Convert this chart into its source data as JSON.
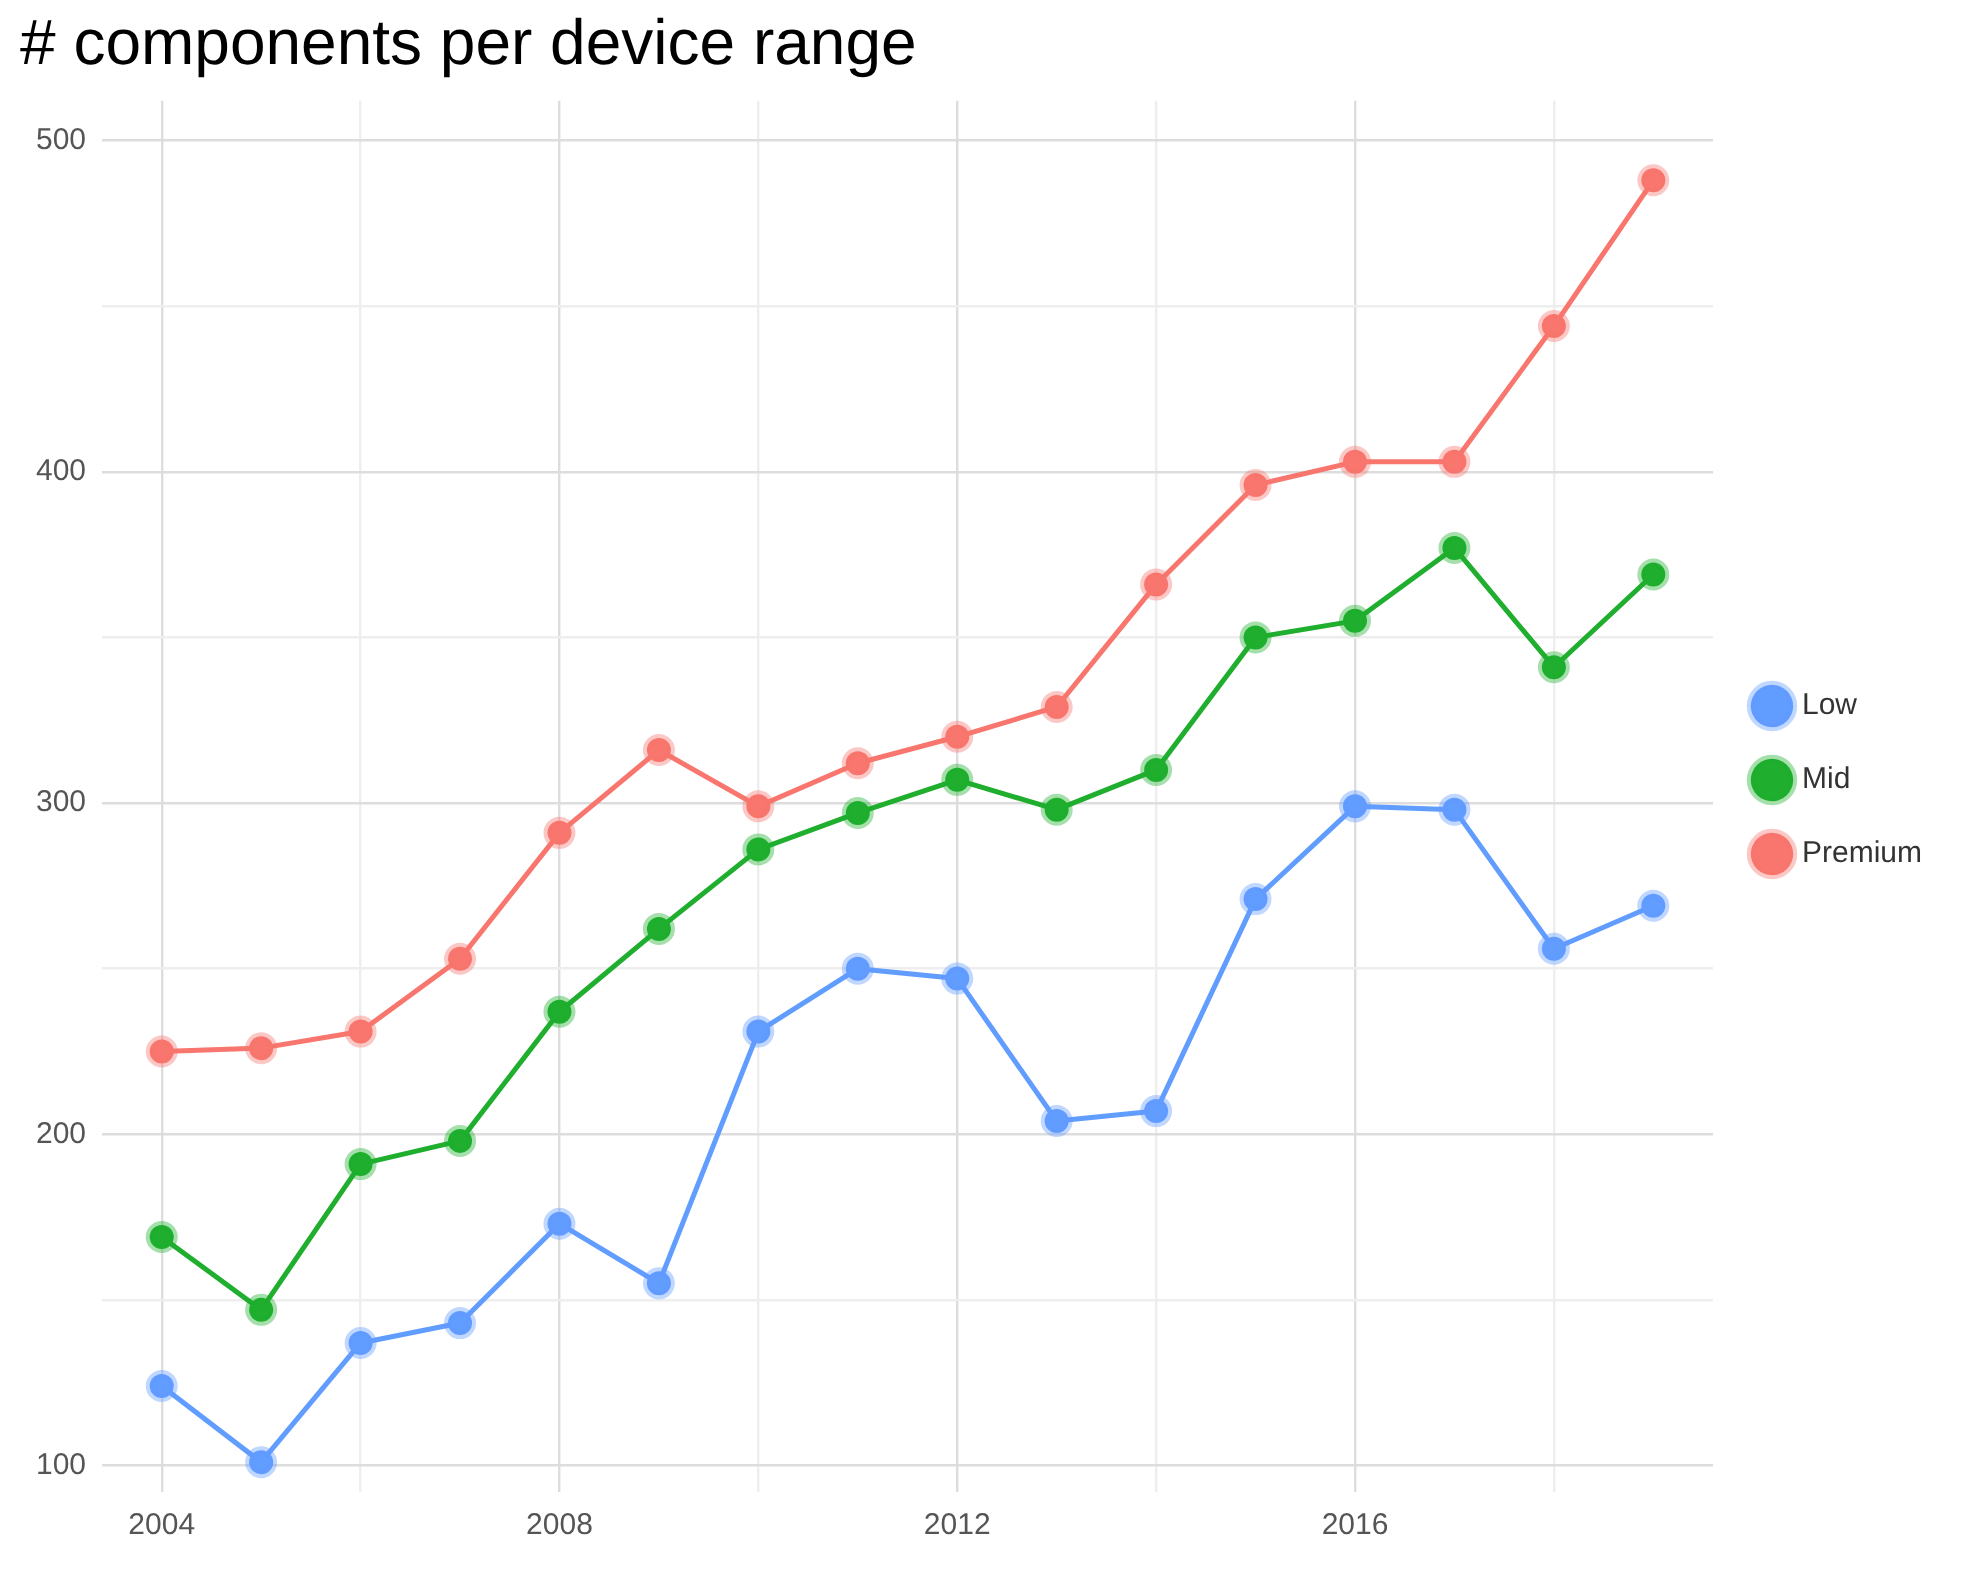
{
  "chart_data": {
    "type": "line",
    "title": "# components per device range",
    "x": [
      2004,
      2005,
      2006,
      2007,
      2008,
      2009,
      2010,
      2011,
      2012,
      2013,
      2014,
      2015,
      2016,
      2017,
      2018,
      2019
    ],
    "series": [
      {
        "name": "Low",
        "color": "#619cff",
        "values": [
          124,
          101,
          137,
          143,
          173,
          155,
          231,
          250,
          247,
          204,
          207,
          271,
          299,
          298,
          256,
          269
        ]
      },
      {
        "name": "Mid",
        "color": "#1fae2e",
        "values": [
          169,
          147,
          191,
          198,
          237,
          262,
          286,
          297,
          307,
          298,
          310,
          350,
          355,
          377,
          341,
          369
        ]
      },
      {
        "name": "Premium",
        "color": "#f8766d",
        "values": [
          225,
          226,
          231,
          253,
          291,
          316,
          299,
          312,
          320,
          329,
          366,
          396,
          403,
          403,
          444,
          488
        ]
      }
    ],
    "xlim": [
      2003.4,
      2019.6
    ],
    "ylim": [
      92,
      512
    ],
    "xticks": [
      2004,
      {
        "value": 2006,
        "label": null
      },
      2008,
      {
        "value": 2010,
        "label": null
      },
      2012,
      {
        "value": 2014,
        "label": null
      },
      2016,
      {
        "value": 2018,
        "label": null
      }
    ],
    "yticks": [
      100,
      {
        "value": 150,
        "label": null
      },
      200,
      {
        "value": 250,
        "label": null
      },
      300,
      {
        "value": 350,
        "label": null
      },
      400,
      {
        "value": 450,
        "label": null
      },
      500
    ],
    "grid": true,
    "legend": "right",
    "marker": "circle",
    "line_style": "solid"
  }
}
